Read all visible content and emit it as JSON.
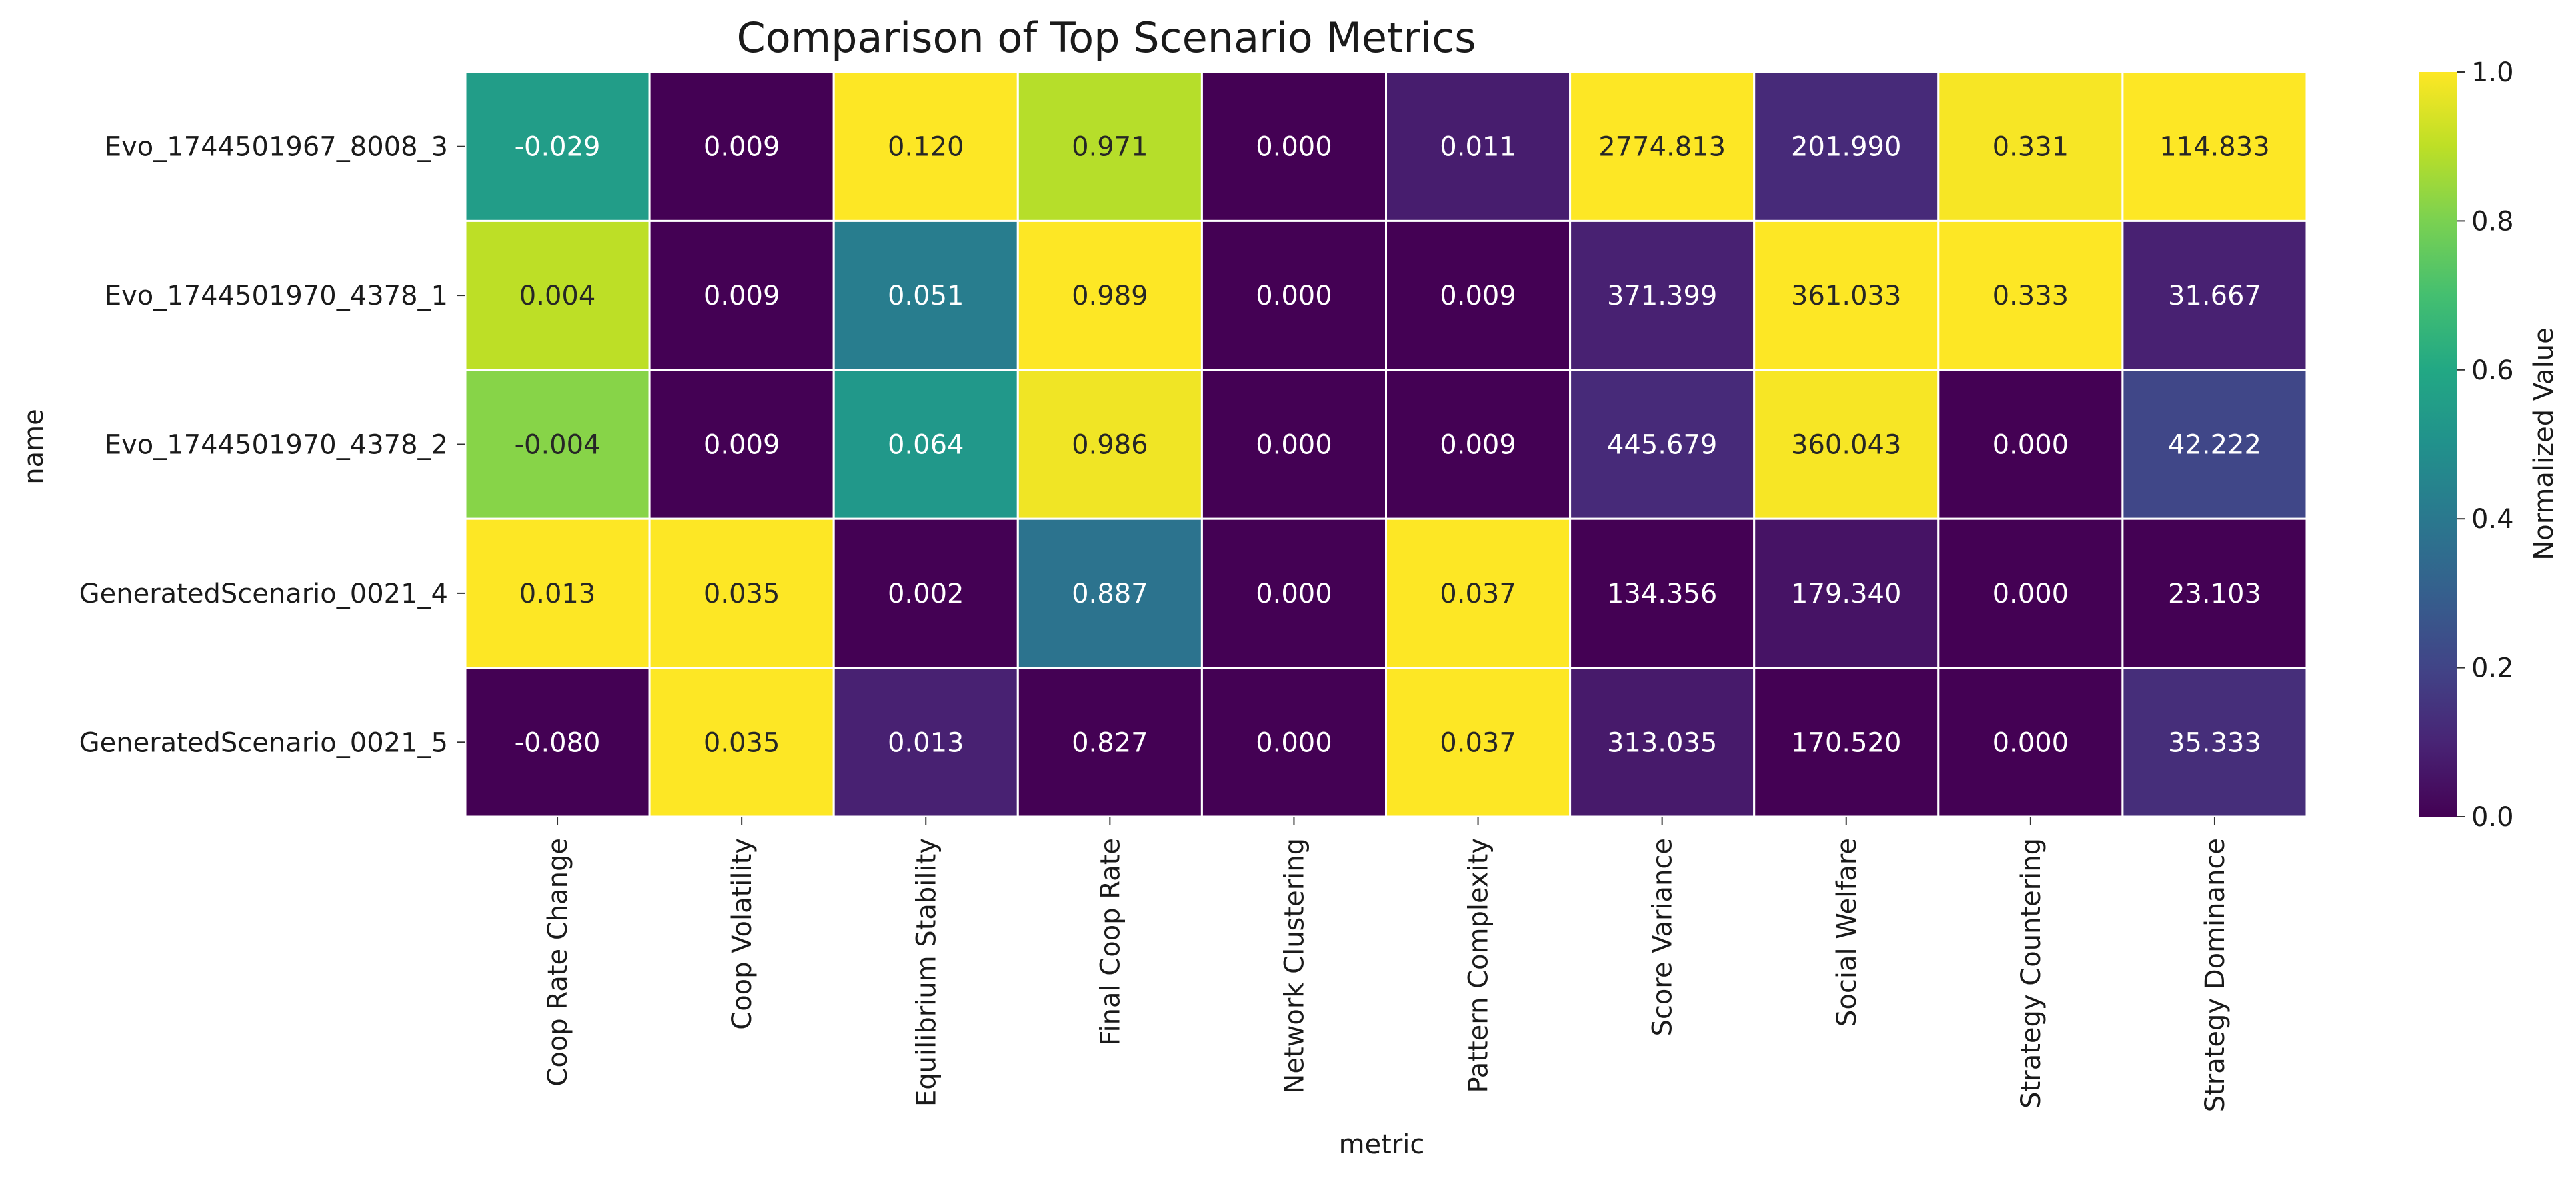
{
  "chart_data": {
    "type": "heatmap",
    "title": "Comparison of Top Scenario Metrics",
    "xlabel": "metric",
    "ylabel": "name",
    "rows": [
      "Evo_1744501967_8008_3",
      "Evo_1744501970_4378_1",
      "Evo_1744501970_4378_2",
      "GeneratedScenario_0021_4",
      "GeneratedScenario_0021_5"
    ],
    "columns": [
      "Coop Rate Change",
      "Coop Volatility",
      "Equilibrium Stability",
      "Final Coop Rate",
      "Network Clustering",
      "Pattern Complexity",
      "Score Variance",
      "Social Welfare",
      "Strategy Countering",
      "Strategy Dominance"
    ],
    "annotations": [
      [
        "-0.029",
        "0.009",
        "0.120",
        "0.971",
        "0.000",
        "0.011",
        "2774.813",
        "201.990",
        "0.331",
        "114.833"
      ],
      [
        "0.004",
        "0.009",
        "0.051",
        "0.989",
        "0.000",
        "0.009",
        "371.399",
        "361.033",
        "0.333",
        "31.667"
      ],
      [
        "-0.004",
        "0.009",
        "0.064",
        "0.986",
        "0.000",
        "0.009",
        "445.679",
        "360.043",
        "0.000",
        "42.222"
      ],
      [
        "0.013",
        "0.035",
        "0.002",
        "0.887",
        "0.000",
        "0.037",
        "134.356",
        "179.340",
        "0.000",
        "23.103"
      ],
      [
        "-0.080",
        "0.035",
        "0.013",
        "0.827",
        "0.000",
        "0.037",
        "313.035",
        "170.520",
        "0.000",
        "35.333"
      ]
    ],
    "normalized_values": [
      [
        0.55,
        0.0,
        1.0,
        0.89,
        0.0,
        0.08,
        1.0,
        0.12,
        0.99,
        1.0
      ],
      [
        0.9,
        0.0,
        0.42,
        1.0,
        0.0,
        0.0,
        0.09,
        1.0,
        1.0,
        0.09
      ],
      [
        0.82,
        0.0,
        0.53,
        0.98,
        0.0,
        0.0,
        0.12,
        0.99,
        0.0,
        0.21
      ],
      [
        1.0,
        1.0,
        0.0,
        0.38,
        0.0,
        1.0,
        0.0,
        0.05,
        0.0,
        0.0
      ],
      [
        0.0,
        1.0,
        0.09,
        0.0,
        0.0,
        1.0,
        0.07,
        0.0,
        0.0,
        0.13
      ]
    ],
    "colorbar": {
      "label": "Normalized Value",
      "range": [
        0,
        1
      ],
      "ticks": [
        "0.0",
        "0.2",
        "0.4",
        "0.6",
        "0.8",
        "1.0"
      ],
      "colormap": "viridis"
    },
    "grid": true,
    "cell_border_color": "#ffffff"
  }
}
